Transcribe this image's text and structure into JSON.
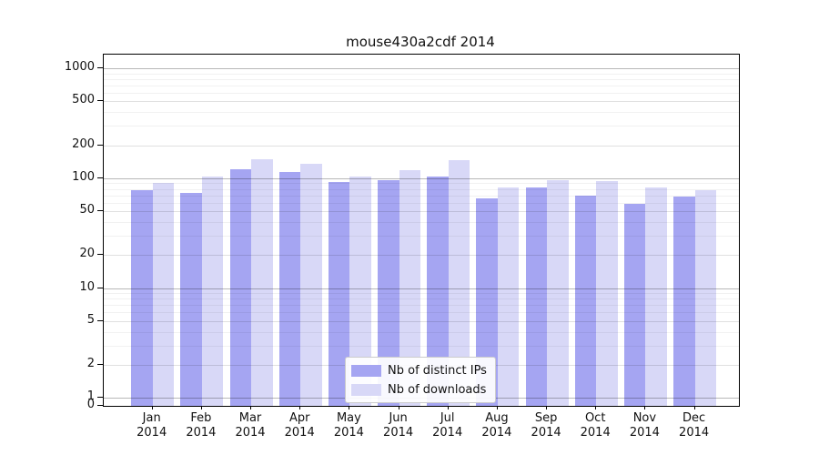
{
  "title": "mouse430a2cdf 2014",
  "chart_data": {
    "type": "bar",
    "title": "mouse430a2cdf 2014",
    "categories": [
      "Jan 2014",
      "Feb 2014",
      "Mar 2014",
      "Apr 2014",
      "May 2014",
      "Jun 2014",
      "Jul 2014",
      "Aug 2014",
      "Sep 2014",
      "Oct 2014",
      "Nov 2014",
      "Dec 2014"
    ],
    "series": [
      {
        "id": "ips",
        "name": "Nb of distinct IPs",
        "color": "#a5a5f2",
        "values": [
          78,
          74,
          121,
          114,
          92,
          96,
          103,
          65,
          83,
          70,
          58,
          68
        ]
      },
      {
        "id": "downloads",
        "name": "Nb of downloads",
        "color": "#d8d8f7",
        "values": [
          90,
          104,
          149,
          135,
          103,
          119,
          147,
          82,
          96,
          95,
          83,
          78
        ]
      }
    ],
    "xlabel": "",
    "ylabel": "",
    "yscale": "log",
    "yticks": [
      0,
      1,
      2,
      5,
      10,
      20,
      50,
      100,
      200,
      500,
      1000
    ],
    "ylim": [
      0,
      1300
    ],
    "grid": true,
    "legend_position": "lower center inside axes"
  }
}
